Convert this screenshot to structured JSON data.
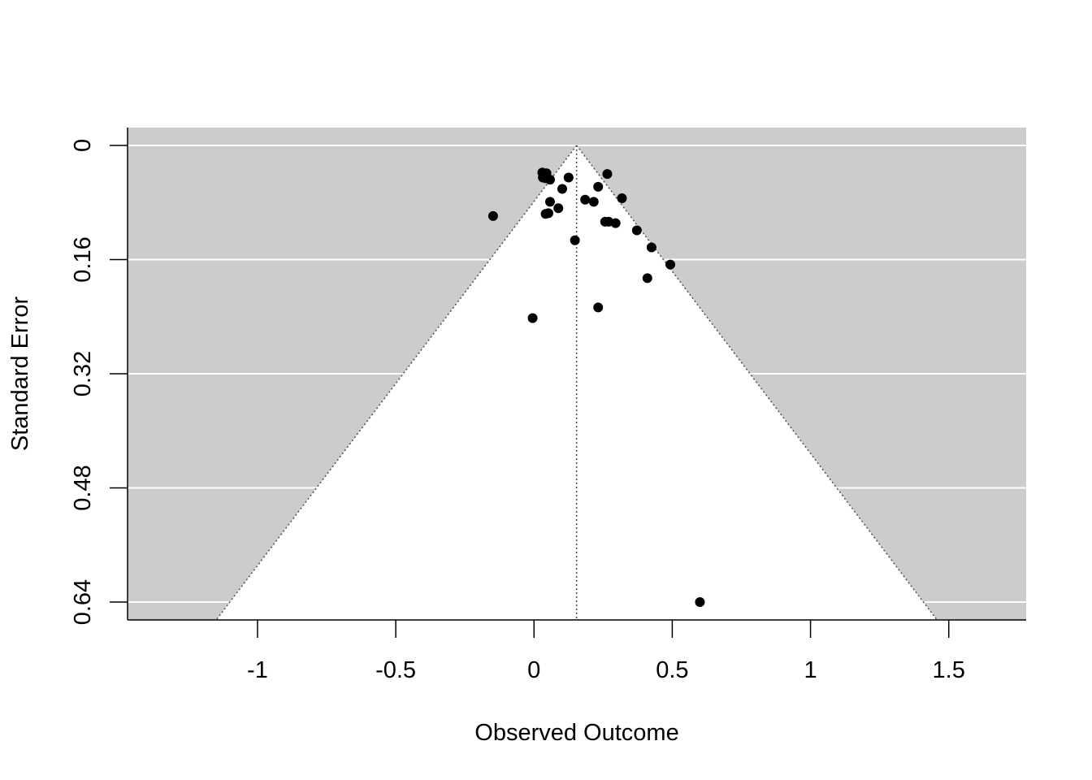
{
  "chart_data": {
    "type": "scatter",
    "subtype": "funnel",
    "title": "",
    "xlabel": "Observed Outcome",
    "ylabel": "Standard Error",
    "xlim": [
      -1.47,
      1.78
    ],
    "ylim": [
      0.665,
      -0.025
    ],
    "y_reversed": true,
    "x_ticks": [
      -1,
      -0.5,
      0,
      0.5,
      1,
      1.5
    ],
    "x_tick_labels": [
      "-1",
      "-0.5",
      "0",
      "0.5",
      "1",
      "1.5"
    ],
    "y_ticks": [
      0,
      0.16,
      0.32,
      0.48,
      0.64
    ],
    "y_tick_labels": [
      "0",
      "0.16",
      "0.32",
      "0.48",
      "0.64"
    ],
    "grid": "horizontal",
    "summary_estimate": 0.154,
    "funnel_multiplier": 1.96,
    "colors": {
      "background_region": "#cccccc",
      "funnel_region": "#ffffff",
      "points": "#000000",
      "gridlines": "#ffffff",
      "reference_lines": "#555555"
    },
    "points": [
      {
        "x": 0.03,
        "y": 0.038
      },
      {
        "x": 0.045,
        "y": 0.039
      },
      {
        "x": 0.032,
        "y": 0.045
      },
      {
        "x": 0.042,
        "y": 0.046
      },
      {
        "x": 0.058,
        "y": 0.048
      },
      {
        "x": 0.125,
        "y": 0.045
      },
      {
        "x": 0.265,
        "y": 0.04
      },
      {
        "x": 0.102,
        "y": 0.061
      },
      {
        "x": 0.232,
        "y": 0.058
      },
      {
        "x": 0.185,
        "y": 0.076
      },
      {
        "x": 0.216,
        "y": 0.079
      },
      {
        "x": 0.318,
        "y": 0.074
      },
      {
        "x": 0.058,
        "y": 0.079
      },
      {
        "x": 0.088,
        "y": 0.088
      },
      {
        "x": 0.042,
        "y": 0.096
      },
      {
        "x": 0.052,
        "y": 0.095
      },
      {
        "x": -0.148,
        "y": 0.099
      },
      {
        "x": 0.257,
        "y": 0.107
      },
      {
        "x": 0.27,
        "y": 0.107
      },
      {
        "x": 0.295,
        "y": 0.109
      },
      {
        "x": 0.372,
        "y": 0.119
      },
      {
        "x": 0.148,
        "y": 0.133
      },
      {
        "x": 0.425,
        "y": 0.143
      },
      {
        "x": 0.493,
        "y": 0.167
      },
      {
        "x": 0.41,
        "y": 0.186
      },
      {
        "x": 0.232,
        "y": 0.227
      },
      {
        "x": -0.005,
        "y": 0.242
      },
      {
        "x": 0.6,
        "y": 0.64
      }
    ]
  }
}
